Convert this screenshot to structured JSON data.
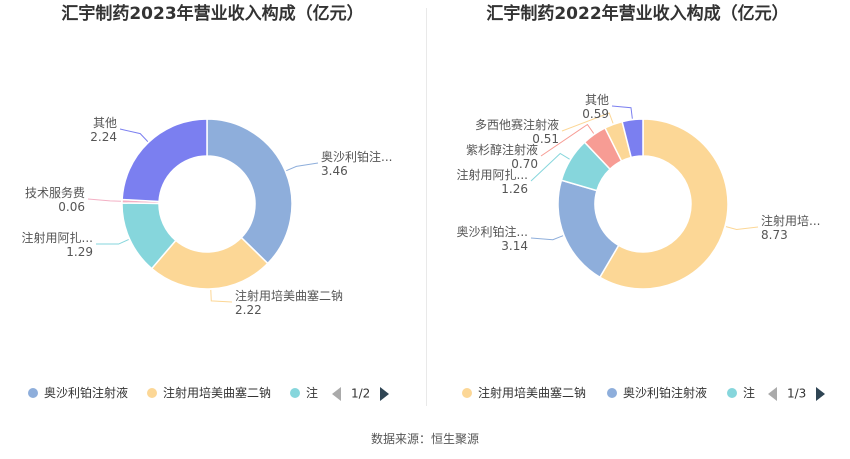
{
  "source_label": "数据来源：恒生聚源",
  "chart_data": [
    {
      "type": "pie",
      "title": "汇宇制药2023年营业收入构成（亿元）",
      "slices": [
        {
          "name": "奥沙利铂注射液",
          "label": "奥沙利铂注...",
          "value": 3.46,
          "value_text": "3.46",
          "color": "#8eaedb"
        },
        {
          "name": "注射用培美曲塞二钠",
          "label": "注射用培美曲塞二钠",
          "value": 2.22,
          "value_text": "2.22",
          "color": "#fcd796"
        },
        {
          "name": "注射用阿扎胞苷",
          "label": "注射用阿扎...",
          "value": 1.29,
          "value_text": "1.29",
          "color": "#86d6dc"
        },
        {
          "name": "技术服务费",
          "label": "技术服务费",
          "value": 0.06,
          "value_text": "0.06",
          "color": "#f3b0c4"
        },
        {
          "name": "其他",
          "label": "其他",
          "value": 2.24,
          "value_text": "2.24",
          "color": "#7b7ff0"
        }
      ],
      "legend": {
        "items": [
          {
            "label": "奥沙利铂注射液",
            "color": "#8eaedb"
          },
          {
            "label": "注射用培美曲塞二钠",
            "color": "#fcd796"
          },
          {
            "label": "注",
            "color": "#86d6dc"
          }
        ],
        "page": "1/2"
      }
    },
    {
      "type": "pie",
      "title": "汇宇制药2022年营业收入构成（亿元）",
      "slices": [
        {
          "name": "注射用培美曲塞二钠",
          "label": "注射用培...",
          "value": 8.73,
          "value_text": "8.73",
          "color": "#fcd796"
        },
        {
          "name": "奥沙利铂注射液",
          "label": "奥沙利铂注...",
          "value": 3.14,
          "value_text": "3.14",
          "color": "#8eaedb"
        },
        {
          "name": "注射用阿扎胞苷",
          "label": "注射用阿扎...",
          "value": 1.26,
          "value_text": "1.26",
          "color": "#86d6dc"
        },
        {
          "name": "紫杉醇注射液",
          "label": "紫杉醇注射液",
          "value": 0.7,
          "value_text": "0.70",
          "color": "#f79c94"
        },
        {
          "name": "多西他赛注射液",
          "label": "多西他赛注射液",
          "value": 0.51,
          "value_text": "0.51",
          "color": "#fcd796"
        },
        {
          "name": "其他",
          "label": "其他",
          "value": 0.59,
          "value_text": "0.59",
          "color": "#7b7ff0"
        }
      ],
      "legend": {
        "items": [
          {
            "label": "注射用培美曲塞二钠",
            "color": "#fcd796"
          },
          {
            "label": "奥沙利铂注射液",
            "color": "#8eaedb"
          },
          {
            "label": "注",
            "color": "#86d6dc"
          }
        ],
        "page": "1/3"
      }
    }
  ]
}
